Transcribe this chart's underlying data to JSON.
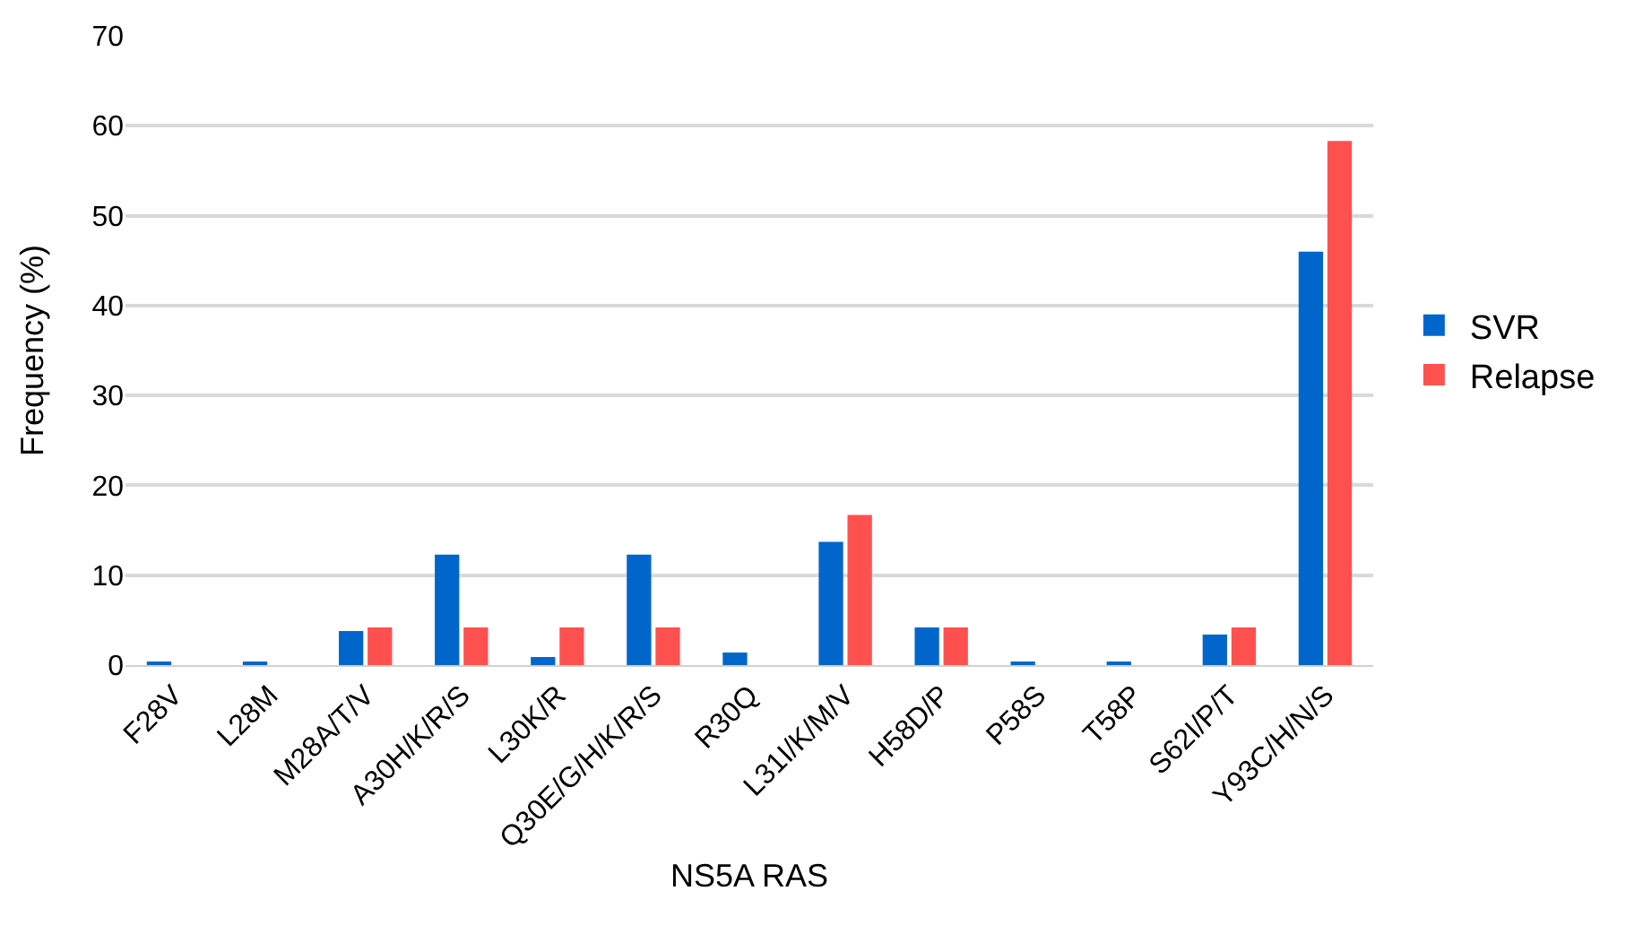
{
  "chart_data": {
    "type": "bar",
    "xlabel": "NS5A RAS",
    "ylabel": "Frequency (%)",
    "categories": [
      "F28V",
      "L28M",
      "M28A/T/V",
      "A30H/K/R/S",
      "L30K/R",
      "Q30E/G/H/K/R/S",
      "R30Q",
      "L31I/K/M/V",
      "H58D/P",
      "P58S",
      "T58P",
      "S62I/P/T",
      "Y93C/H/N/S"
    ],
    "series": [
      {
        "name": "SVR",
        "color": "#0066cc",
        "values": [
          0.4,
          0.4,
          3.8,
          12.3,
          0.9,
          12.3,
          1.4,
          13.7,
          4.2,
          0.4,
          0.4,
          3.4,
          46.0
        ]
      },
      {
        "name": "Relapse",
        "color": "#ff5050",
        "values": [
          null,
          null,
          4.2,
          4.2,
          4.2,
          4.2,
          null,
          16.7,
          4.2,
          null,
          null,
          4.2,
          58.3
        ]
      }
    ],
    "ylim": [
      0,
      70
    ],
    "yticks": [
      0,
      10,
      20,
      30,
      40,
      50,
      60,
      70
    ],
    "grid": "y",
    "legend": "right"
  }
}
